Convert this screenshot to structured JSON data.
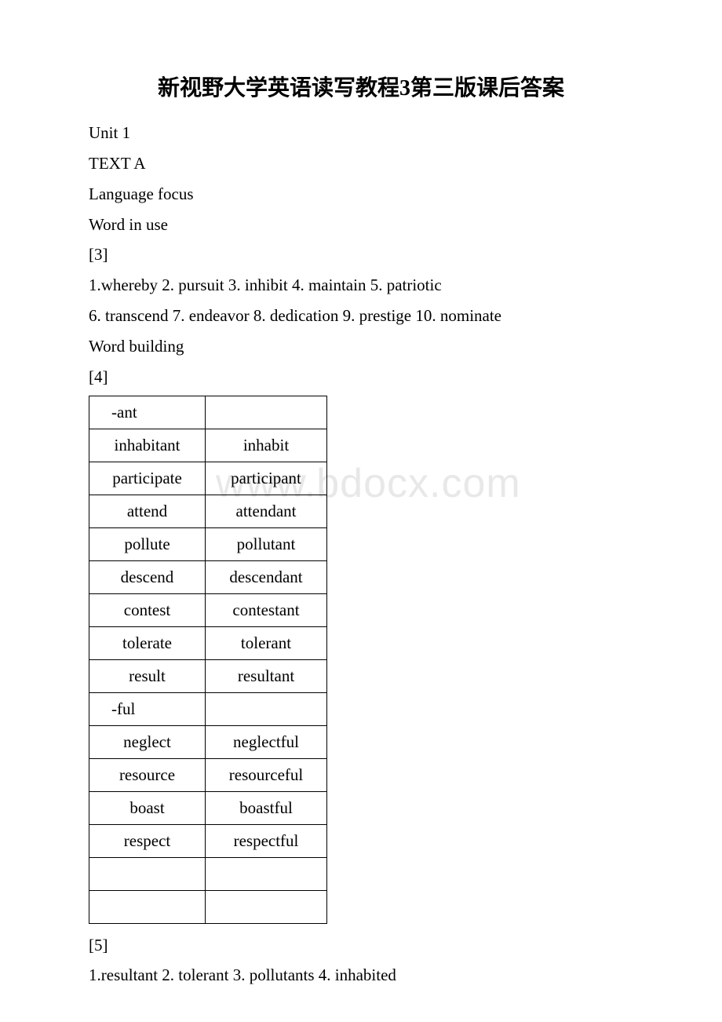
{
  "title": "新视野大学英语读写教程3第三版课后答案",
  "lines": {
    "unit": "Unit 1",
    "textA": "TEXT A",
    "langFocus": "Language focus",
    "wordInUse": "Word in use",
    "bracket3": "[3]",
    "line1": "1.whereby 2. pursuit  3. inhibit  4. maintain  5. patriotic",
    "line2": "6. transcend  7. endeavor 8. dedication 9. prestige  10. nominate",
    "wordBuilding": "Word building",
    "bracket4": "[4]",
    "bracket5": "[5]",
    "line5": "1.resultant  2. tolerant 3. pollutants  4. inhabited"
  },
  "table": {
    "rows": [
      {
        "c1": "-ant",
        "c2": "",
        "c1_align": "left"
      },
      {
        "c1": "inhabitant",
        "c2": "inhabit"
      },
      {
        "c1": "participate",
        "c2": "participant"
      },
      {
        "c1": "attend",
        "c2": "attendant"
      },
      {
        "c1": "pollute",
        "c2": "pollutant"
      },
      {
        "c1": "descend",
        "c2": "descendant"
      },
      {
        "c1": "contest",
        "c2": "contestant"
      },
      {
        "c1": "tolerate",
        "c2": "tolerant"
      },
      {
        "c1": "result",
        "c2": "resultant"
      },
      {
        "c1": "-ful",
        "c2": "",
        "c1_align": "left"
      },
      {
        "c1": "neglect",
        "c2": "neglectful"
      },
      {
        "c1": "resource",
        "c2": "resourceful"
      },
      {
        "c1": "boast",
        "c2": "boastful"
      },
      {
        "c1": "respect",
        "c2": "respectful"
      },
      {
        "c1": "",
        "c2": ""
      },
      {
        "c1": "",
        "c2": ""
      }
    ]
  },
  "watermark": "www.bdocx.com",
  "colors": {
    "background": "#ffffff",
    "text": "#000000",
    "border": "#000000",
    "watermark": "#e8e8e8"
  },
  "fonts": {
    "title_size": 28,
    "body_size": 21,
    "watermark_size": 52
  }
}
